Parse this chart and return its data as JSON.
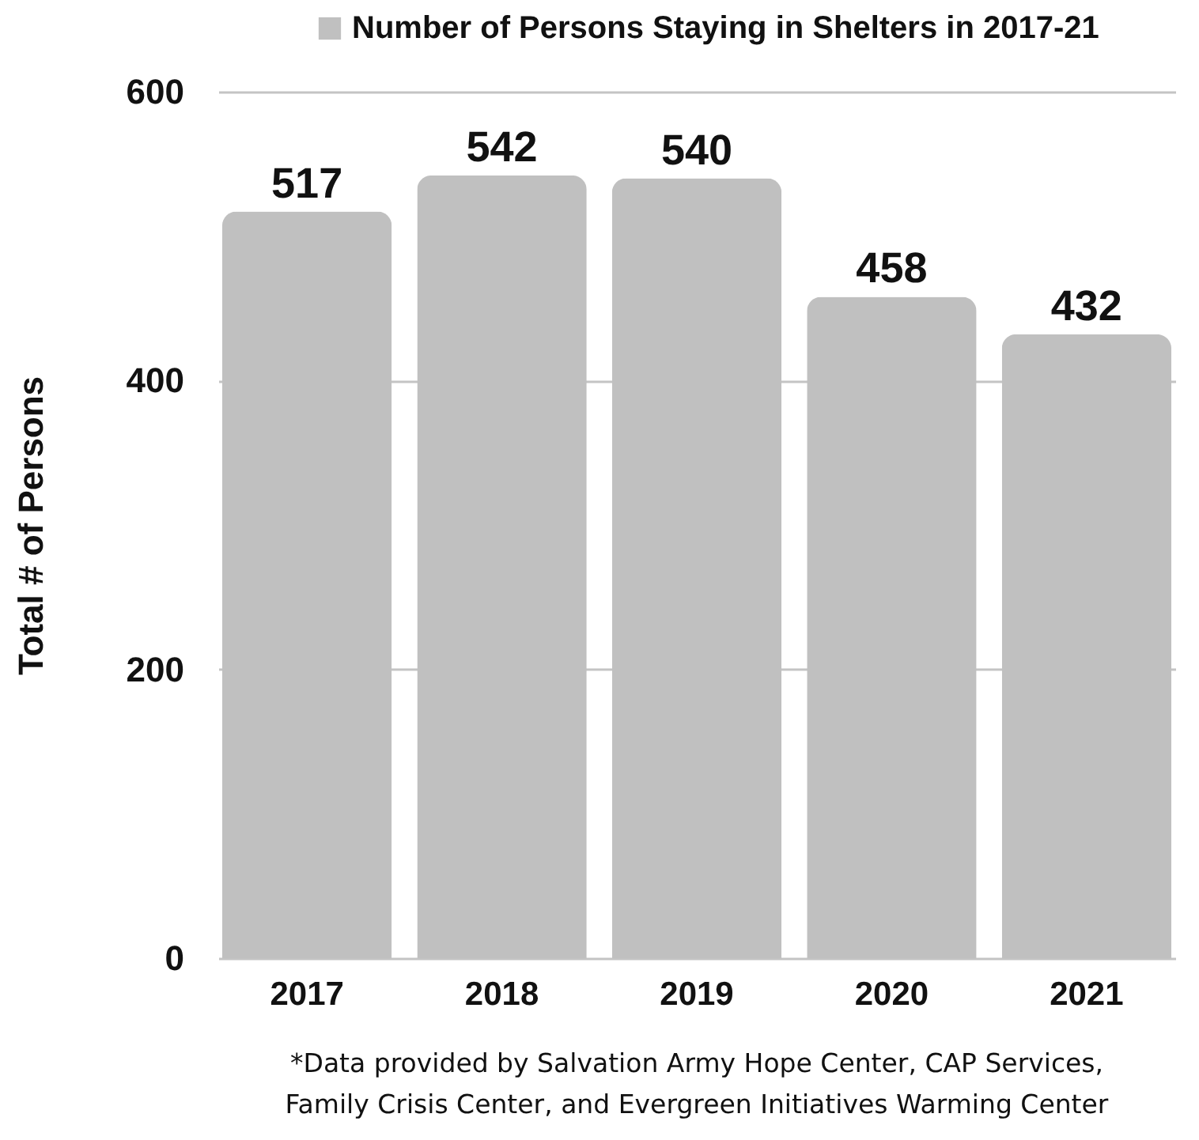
{
  "chart_data": {
    "type": "bar",
    "categories": [
      "2017",
      "2018",
      "2019",
      "2020",
      "2021"
    ],
    "series": [
      {
        "name": "Number of Persons Staying in Shelters in 2017-21",
        "color": "#c0c0c0",
        "values": [
          517,
          542,
          540,
          458,
          432
        ]
      }
    ],
    "ylabel": "Total # of Persons",
    "ylim": [
      0,
      600
    ],
    "yticks": [
      0,
      200,
      400,
      600
    ],
    "grid": "y",
    "legend": "top",
    "data_labels": true,
    "annotations": [
      "*Data provided by Salvation Army Hope Center, CAP Services,",
      "Family Crisis Center, and Evergreen Initiatives Warming Center"
    ]
  }
}
